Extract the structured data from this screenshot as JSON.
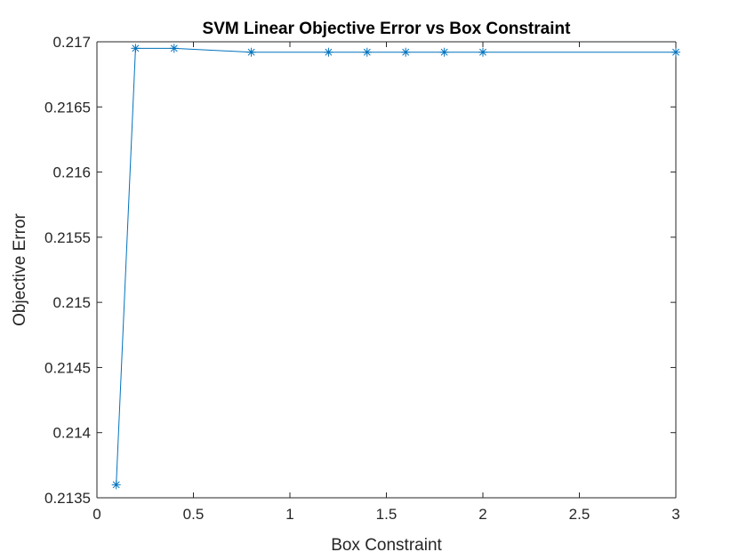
{
  "chart_data": {
    "type": "line",
    "title": "SVM Linear Objective Error vs Box Constraint",
    "xlabel": "Box Constraint",
    "ylabel": "Objective Error",
    "xlim": [
      0,
      3
    ],
    "ylim": [
      0.2135,
      0.217
    ],
    "xticks": [
      0,
      0.5,
      1,
      1.5,
      2,
      2.5,
      3
    ],
    "xtick_labels": [
      "0",
      "0.5",
      "1",
      "1.5",
      "2",
      "2.5",
      "3"
    ],
    "yticks": [
      0.2135,
      0.214,
      0.2145,
      0.215,
      0.2155,
      0.216,
      0.2165,
      0.217
    ],
    "ytick_labels": [
      "0.2135",
      "0.214",
      "0.2145",
      "0.215",
      "0.2155",
      "0.216",
      "0.2165",
      "0.217"
    ],
    "grid": false,
    "marker": "asterisk",
    "series": [
      {
        "x": [
          0.1,
          0.2,
          0.4,
          0.8,
          1.2,
          1.4,
          1.6,
          1.8,
          2.0,
          3.0
        ],
        "y": [
          0.2136,
          0.21695,
          0.21695,
          0.21692,
          0.21692,
          0.21692,
          0.21692,
          0.21692,
          0.21692,
          0.21692
        ]
      }
    ]
  },
  "colors": {
    "series": "#0072BD",
    "axis": "#262626",
    "background": "#ffffff"
  }
}
